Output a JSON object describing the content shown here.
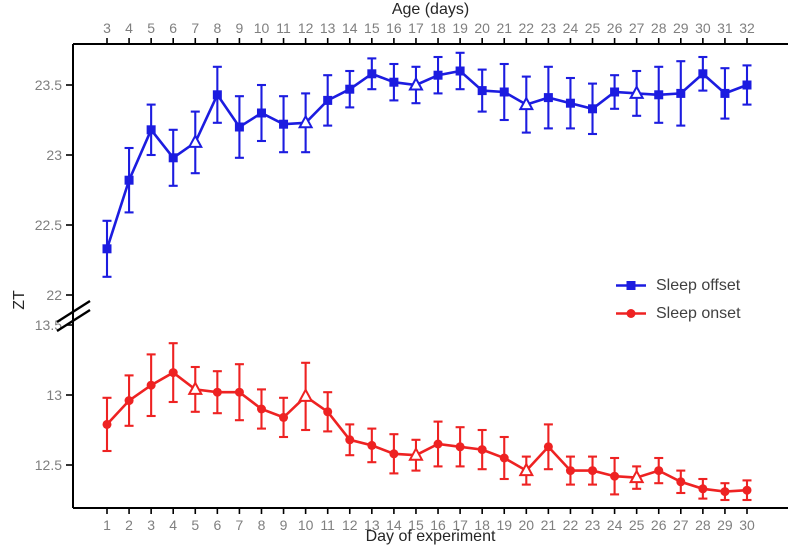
{
  "figure": {
    "top_axis_title": "Age (days)",
    "bottom_axis_title": "Day of experiment",
    "y_axis_title": "ZT",
    "background": "#ffffff",
    "axis_color": "#000000",
    "tick_label_color": "#7f7f7f",
    "title_color": "#262626"
  },
  "legend": {
    "items": [
      {
        "label": "Sleep offset",
        "color": "#1c1ce0",
        "marker": "square"
      },
      {
        "label": "Sleep onset",
        "color": "#ee2222",
        "marker": "circle"
      }
    ]
  },
  "chart_data": {
    "type": "line",
    "title": "",
    "xlabel": "Day of experiment",
    "top_xlabel": "Age (days)",
    "ylabel": "ZT",
    "grid": false,
    "legend_position": "right-middle",
    "x": {
      "days": [
        1,
        2,
        3,
        4,
        5,
        6,
        7,
        8,
        9,
        10,
        11,
        12,
        13,
        14,
        15,
        16,
        17,
        18,
        19,
        20,
        21,
        22,
        23,
        24,
        25,
        26,
        27,
        28,
        29,
        30
      ]
    },
    "x_top": {
      "ages": [
        3,
        4,
        5,
        6,
        7,
        8,
        9,
        10,
        11,
        12,
        13,
        14,
        15,
        16,
        17,
        18,
        19,
        20,
        21,
        22,
        23,
        24,
        25,
        26,
        27,
        28,
        29,
        30,
        31,
        32
      ]
    },
    "y": {
      "axis_break": true,
      "upper_ticks": [
        23.5,
        23,
        22.5,
        22
      ],
      "lower_ticks": [
        13.5,
        13,
        12.5
      ],
      "upper_range": [
        22.0,
        23.79
      ],
      "lower_range": [
        12.19,
        13.5
      ]
    },
    "open_triangle_days": [
      5,
      10,
      15,
      20,
      25
    ],
    "series": [
      {
        "name": "Sleep offset",
        "panel": "upper",
        "marker": "square",
        "color": "#1c1ce0",
        "values": [
          22.33,
          22.82,
          23.18,
          22.98,
          23.09,
          23.43,
          23.2,
          23.3,
          23.22,
          23.23,
          23.39,
          23.47,
          23.58,
          23.52,
          23.5,
          23.57,
          23.6,
          23.46,
          23.45,
          23.36,
          23.41,
          23.37,
          23.33,
          23.45,
          23.44,
          23.43,
          23.44,
          23.58,
          23.44,
          23.5
        ],
        "errors": [
          0.2,
          0.23,
          0.18,
          0.2,
          0.22,
          0.2,
          0.22,
          0.2,
          0.2,
          0.21,
          0.18,
          0.13,
          0.11,
          0.13,
          0.13,
          0.13,
          0.13,
          0.15,
          0.2,
          0.2,
          0.22,
          0.18,
          0.18,
          0.12,
          0.16,
          0.2,
          0.23,
          0.12,
          0.18,
          0.14
        ]
      },
      {
        "name": "Sleep onset",
        "panel": "lower",
        "marker": "circle",
        "color": "#ee2222",
        "values": [
          12.79,
          12.96,
          13.07,
          13.16,
          13.04,
          13.02,
          13.02,
          12.9,
          12.84,
          12.99,
          12.88,
          12.68,
          12.64,
          12.58,
          12.57,
          12.65,
          12.63,
          12.61,
          12.55,
          12.46,
          12.63,
          12.46,
          12.46,
          12.42,
          12.41,
          12.46,
          12.38,
          12.33,
          12.31,
          12.32
        ],
        "errors": [
          0.19,
          0.18,
          0.22,
          0.21,
          0.16,
          0.15,
          0.2,
          0.14,
          0.14,
          0.24,
          0.14,
          0.11,
          0.12,
          0.14,
          0.11,
          0.16,
          0.14,
          0.14,
          0.15,
          0.1,
          0.16,
          0.1,
          0.1,
          0.13,
          0.08,
          0.09,
          0.08,
          0.07,
          0.06,
          0.07
        ]
      }
    ]
  }
}
